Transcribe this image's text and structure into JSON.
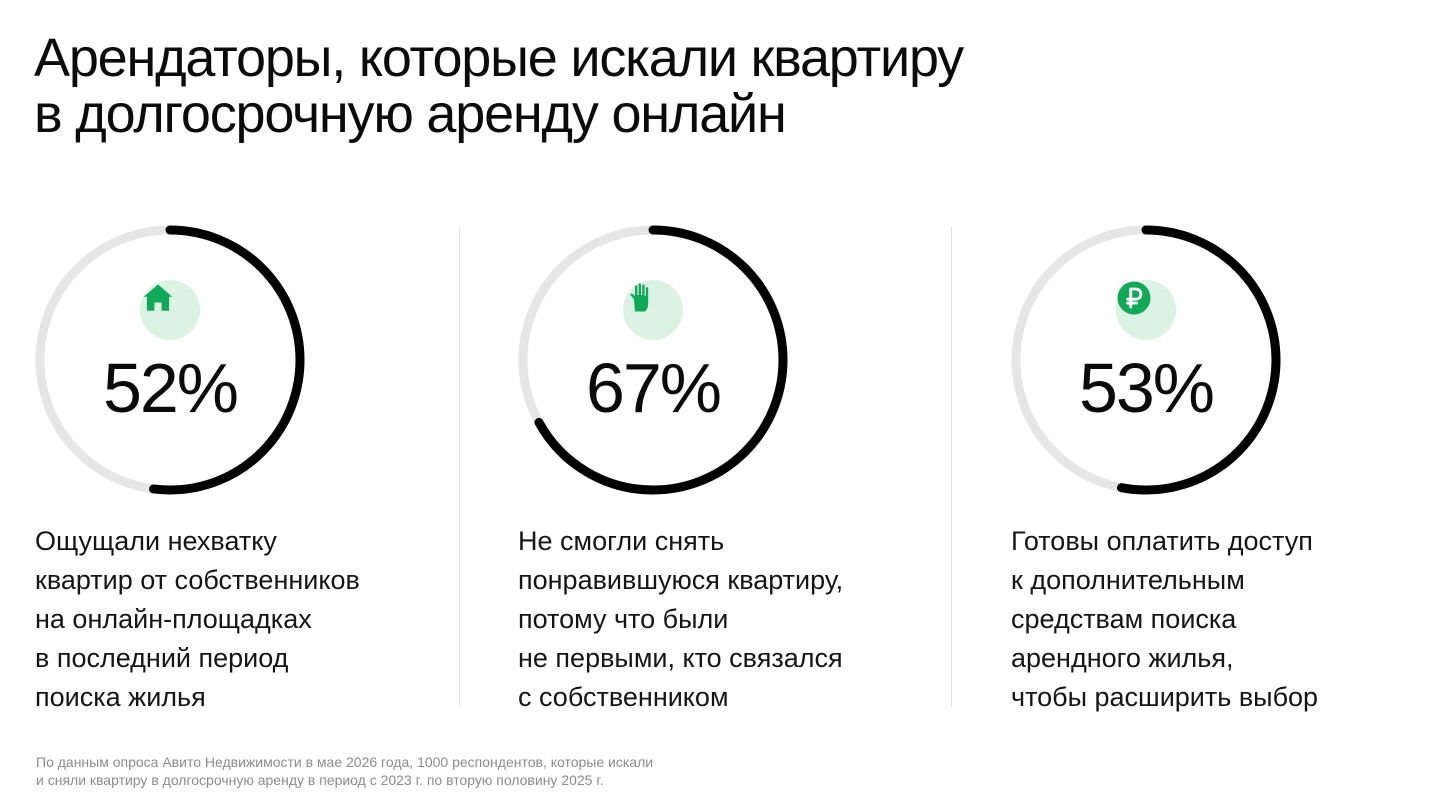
{
  "title": {
    "line1": "Арендаторы, которые искали квартиру",
    "line2": "в долгосрочную аренду онлайн"
  },
  "colors": {
    "track": "#e6e6e6",
    "arc": "#000000",
    "accent": "#0fa957",
    "icon_bg": "#dcf3e4"
  },
  "stats": [
    {
      "icon": "house-icon",
      "percent_label": "52%",
      "value": 52,
      "description": [
        "Ощущали нехватку",
        "квартир от собственников",
        "на онлайн-площадках",
        "в последний период",
        "поиска жилья"
      ]
    },
    {
      "icon": "hand-icon",
      "percent_label": "67%",
      "value": 67,
      "description": [
        "Не смогли снять",
        "понравившуюся квартиру,",
        "потому что были",
        "не первыми, кто связался",
        "с собственником"
      ]
    },
    {
      "icon": "ruble-icon",
      "percent_label": "53%",
      "value": 53,
      "description": [
        "Готовы оплатить доступ",
        "к дополнительным",
        "средствам поиска",
        "арендного жилья,",
        "чтобы расширить выбор"
      ]
    }
  ],
  "footnote": {
    "line1": "По данным опроса Авито Недвижимости в мае 2026 года, 1000 респондентов, которые искали",
    "line2": "и сняли квартиру в долгосрочную аренду в период с 2023 г. по вторую половину 2025 г."
  },
  "chart_data": {
    "type": "pie",
    "title": "Арендаторы, которые искали квартиру в долгосрочную аренду онлайн",
    "categories": [
      "Ощущали нехватку квартир от собственников на онлайн-площадках в последний период поиска жилья",
      "Не смогли снять понравившуюся квартиру, потому что были не первыми, кто связался с собственником",
      "Готовы оплатить доступ к дополнительным средствам поиска арендного жилья, чтобы расширить выбор"
    ],
    "values": [
      52,
      67,
      53
    ],
    "unit": "%"
  }
}
